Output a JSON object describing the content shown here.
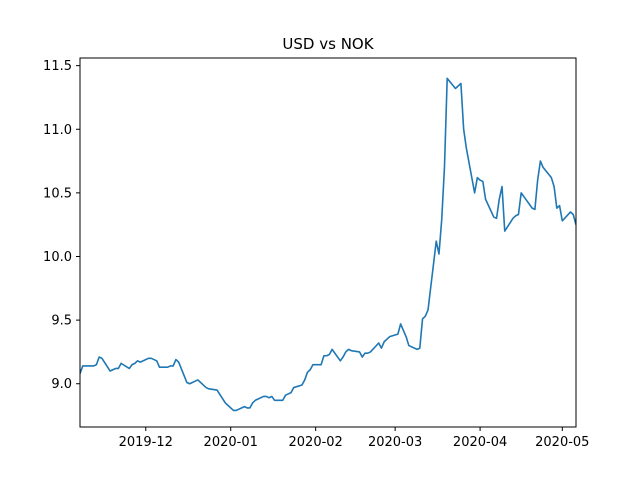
{
  "chart_data": {
    "type": "line",
    "title": "USD vs NOK",
    "xlabel": "",
    "ylabel": "",
    "x_axis_type": "date",
    "xlim": [
      "2019-11-07",
      "2020-05-06"
    ],
    "ylim": [
      8.66,
      11.56
    ],
    "x_ticks": [
      {
        "date": "2019-12-01",
        "label": "2019-12"
      },
      {
        "date": "2020-01-01",
        "label": "2020-01"
      },
      {
        "date": "2020-02-01",
        "label": "2020-02"
      },
      {
        "date": "2020-03-01",
        "label": "2020-03"
      },
      {
        "date": "2020-04-01",
        "label": "2020-04"
      },
      {
        "date": "2020-05-01",
        "label": "2020-05"
      }
    ],
    "y_ticks": [
      9.0,
      9.5,
      10.0,
      10.5,
      11.0,
      11.5
    ],
    "y_tick_labels": [
      "9.0",
      "9.5",
      "10.0",
      "10.5",
      "11.0",
      "11.5"
    ],
    "grid": false,
    "legend": false,
    "line_color": "#1f77b4",
    "series": [
      {
        "x": [
          "2019-11-07",
          "2019-11-08",
          "2019-11-11",
          "2019-11-12",
          "2019-11-13",
          "2019-11-14",
          "2019-11-15",
          "2019-11-18",
          "2019-11-19",
          "2019-11-20",
          "2019-11-21",
          "2019-11-22",
          "2019-11-25",
          "2019-11-26",
          "2019-11-27",
          "2019-11-28",
          "2019-11-29",
          "2019-12-02",
          "2019-12-03",
          "2019-12-04",
          "2019-12-05",
          "2019-12-06",
          "2019-12-09",
          "2019-12-10",
          "2019-12-11",
          "2019-12-12",
          "2019-12-13",
          "2019-12-16",
          "2019-12-17",
          "2019-12-18",
          "2019-12-19",
          "2019-12-20",
          "2019-12-23",
          "2019-12-24",
          "2019-12-27",
          "2019-12-30",
          "2019-12-31",
          "2020-01-02",
          "2020-01-03",
          "2020-01-06",
          "2020-01-07",
          "2020-01-08",
          "2020-01-09",
          "2020-01-10",
          "2020-01-13",
          "2020-01-14",
          "2020-01-15",
          "2020-01-16",
          "2020-01-17",
          "2020-01-20",
          "2020-01-21",
          "2020-01-22",
          "2020-01-23",
          "2020-01-24",
          "2020-01-27",
          "2020-01-28",
          "2020-01-29",
          "2020-01-30",
          "2020-01-31",
          "2020-02-03",
          "2020-02-04",
          "2020-02-05",
          "2020-02-06",
          "2020-02-07",
          "2020-02-10",
          "2020-02-11",
          "2020-02-12",
          "2020-02-13",
          "2020-02-14",
          "2020-02-17",
          "2020-02-18",
          "2020-02-19",
          "2020-02-20",
          "2020-02-21",
          "2020-02-24",
          "2020-02-25",
          "2020-02-26",
          "2020-02-27",
          "2020-02-28",
          "2020-03-02",
          "2020-03-03",
          "2020-03-04",
          "2020-03-05",
          "2020-03-06",
          "2020-03-09",
          "2020-03-10",
          "2020-03-11",
          "2020-03-12",
          "2020-03-13",
          "2020-03-16",
          "2020-03-17",
          "2020-03-18",
          "2020-03-19",
          "2020-03-20",
          "2020-03-23",
          "2020-03-24",
          "2020-03-25",
          "2020-03-26",
          "2020-03-27",
          "2020-03-30",
          "2020-03-31",
          "2020-04-01",
          "2020-04-02",
          "2020-04-03",
          "2020-04-06",
          "2020-04-07",
          "2020-04-08",
          "2020-04-09",
          "2020-04-10",
          "2020-04-13",
          "2020-04-14",
          "2020-04-15",
          "2020-04-16",
          "2020-04-17",
          "2020-04-20",
          "2020-04-21",
          "2020-04-22",
          "2020-04-23",
          "2020-04-24",
          "2020-04-27",
          "2020-04-28",
          "2020-04-29",
          "2020-04-30",
          "2020-05-01",
          "2020-05-04",
          "2020-05-05",
          "2020-05-06"
        ],
        "y": [
          9.08,
          9.14,
          9.14,
          9.14,
          9.15,
          9.21,
          9.2,
          9.1,
          9.11,
          9.12,
          9.12,
          9.16,
          9.12,
          9.15,
          9.16,
          9.18,
          9.17,
          9.2,
          9.2,
          9.19,
          9.18,
          9.13,
          9.13,
          9.14,
          9.14,
          9.19,
          9.17,
          9.01,
          9.0,
          9.01,
          9.02,
          9.03,
          8.97,
          8.96,
          8.95,
          8.85,
          8.83,
          8.79,
          8.79,
          8.82,
          8.81,
          8.81,
          8.85,
          8.87,
          8.9,
          8.9,
          8.89,
          8.9,
          8.87,
          8.87,
          8.91,
          8.92,
          8.93,
          8.97,
          8.99,
          9.03,
          9.09,
          9.11,
          9.15,
          9.15,
          9.22,
          9.22,
          9.23,
          9.27,
          9.18,
          9.21,
          9.25,
          9.27,
          9.26,
          9.25,
          9.21,
          9.24,
          9.24,
          9.25,
          9.32,
          9.28,
          9.33,
          9.35,
          9.37,
          9.39,
          9.47,
          9.42,
          9.37,
          9.3,
          9.27,
          9.28,
          9.51,
          9.53,
          9.58,
          10.12,
          10.02,
          10.29,
          10.7,
          11.4,
          11.32,
          11.34,
          11.36,
          11.0,
          10.85,
          10.5,
          10.62,
          10.6,
          10.59,
          10.45,
          10.31,
          10.3,
          10.45,
          10.55,
          10.2,
          10.3,
          10.32,
          10.33,
          10.5,
          10.47,
          10.38,
          10.37,
          10.6,
          10.75,
          10.7,
          10.62,
          10.55,
          10.38,
          10.4,
          10.28,
          10.35,
          10.33,
          10.25
        ]
      }
    ]
  }
}
